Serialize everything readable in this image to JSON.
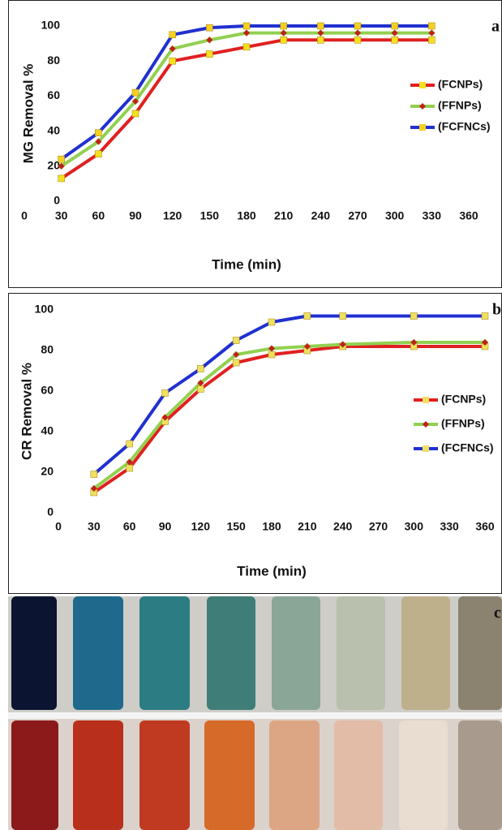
{
  "chart_data": [
    {
      "type": "line",
      "panel_label": "a",
      "x_label": "Time (min)",
      "y_label": "MG Removal %",
      "x": [
        30,
        60,
        90,
        120,
        150,
        180,
        210,
        240,
        270,
        300,
        330
      ],
      "xlim": [
        0,
        360
      ],
      "xticks": [
        0,
        30,
        60,
        90,
        120,
        150,
        180,
        210,
        240,
        270,
        300,
        330,
        360
      ],
      "ylim": [
        0,
        100
      ],
      "yticks": [
        0,
        20,
        40,
        60,
        80,
        100
      ],
      "series": [
        {
          "name": "(FCNPs)",
          "color": "#e02020",
          "marker": "square",
          "marker_color": "#f5e020",
          "values": [
            13,
            27,
            50,
            80,
            84,
            88,
            92,
            92,
            92,
            92,
            92
          ]
        },
        {
          "name": "(FFNPs)",
          "color": "#92d050",
          "marker": "diamond",
          "marker_color": "#c02020",
          "values": [
            20,
            34,
            57,
            87,
            92,
            96,
            96,
            96,
            96,
            96,
            96
          ]
        },
        {
          "name": "(FCFNCs)",
          "color": "#2030d0",
          "marker": "square",
          "marker_color": "#f5d020",
          "values": [
            24,
            39,
            62,
            95,
            99,
            100,
            100,
            100,
            100,
            100,
            100
          ]
        }
      ]
    },
    {
      "type": "line",
      "panel_label": "b",
      "x_label": "Time (min)",
      "y_label": "CR Removal %",
      "x": [
        30,
        60,
        90,
        120,
        150,
        180,
        210,
        240,
        300,
        360
      ],
      "xlim": [
        0,
        360
      ],
      "xticks": [
        0,
        30,
        60,
        90,
        120,
        150,
        180,
        210,
        240,
        270,
        300,
        330,
        360
      ],
      "ylim": [
        0,
        100
      ],
      "yticks": [
        0,
        20,
        40,
        60,
        80,
        100
      ],
      "series": [
        {
          "name": "(FCNPs)",
          "color": "#e02020",
          "marker": "square",
          "marker_color": "#f0e060",
          "values": [
            10,
            22,
            45,
            61,
            74,
            78,
            80,
            82,
            82,
            82
          ]
        },
        {
          "name": "(FFNPs)",
          "color": "#92d050",
          "marker": "diamond",
          "marker_color": "#c02020",
          "values": [
            12,
            25,
            47,
            64,
            78,
            81,
            82,
            83,
            84,
            84
          ]
        },
        {
          "name": "(FCFNCs)",
          "color": "#2030d0",
          "marker": "square",
          "marker_color": "#f0e060",
          "values": [
            19,
            34,
            59,
            71,
            85,
            94,
            97,
            97,
            97,
            97
          ]
        }
      ]
    }
  ],
  "photo": {
    "label": "c"
  }
}
